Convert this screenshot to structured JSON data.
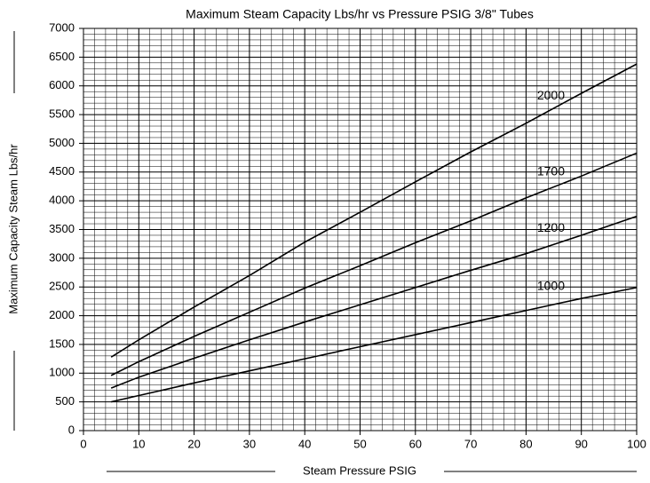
{
  "chart_data": {
    "type": "line",
    "title": "Maximum Steam Capacity Lbs/hr vs Pressure PSIG 3/8\" Tubes",
    "x_label": "Steam Pressure PSIG",
    "y_label": "Maximum Capacity Steam Lbs/hr",
    "x": [
      5,
      10,
      20,
      30,
      40,
      50,
      60,
      70,
      80,
      90,
      100
    ],
    "series": [
      {
        "name": "2000",
        "color": "#000000",
        "values": [
          1280,
          1580,
          2150,
          2700,
          3280,
          3800,
          4330,
          4850,
          5350,
          5870,
          6380
        ]
      },
      {
        "name": "1700",
        "color": "#000000",
        "values": [
          960,
          1200,
          1640,
          2060,
          2480,
          2870,
          3270,
          3650,
          4050,
          4430,
          4830
        ]
      },
      {
        "name": "1200",
        "color": "#000000",
        "values": [
          740,
          930,
          1260,
          1580,
          1890,
          2190,
          2490,
          2790,
          3080,
          3400,
          3730
        ]
      },
      {
        "name": "1000",
        "color": "#000000",
        "values": [
          500,
          610,
          830,
          1040,
          1250,
          1460,
          1670,
          1880,
          2090,
          2300,
          2490
        ]
      }
    ],
    "xlim": [
      0,
      100
    ],
    "xticks": [
      0,
      10,
      20,
      30,
      40,
      50,
      60,
      70,
      80,
      90,
      100
    ],
    "ylim": [
      0,
      7000
    ],
    "yticks": [
      0,
      500,
      1000,
      1500,
      2000,
      2500,
      3000,
      3500,
      4000,
      4500,
      5000,
      5500,
      6000,
      6500,
      7000
    ],
    "grid": true,
    "minor_grid": {
      "x": 2,
      "y": 100
    }
  }
}
